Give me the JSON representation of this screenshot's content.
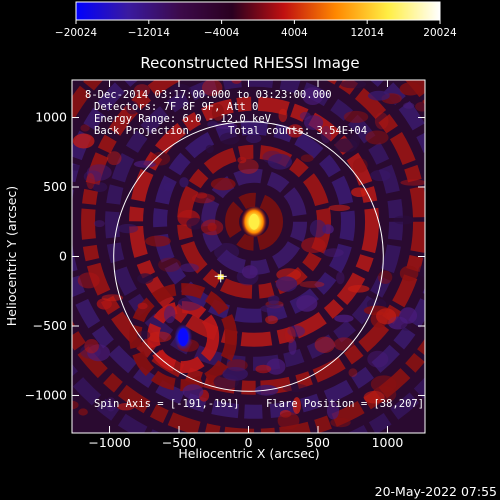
{
  "chart_data": {
    "type": "heatmap",
    "title": "Reconstructed RHESSI Image",
    "xlabel": "Heliocentric X (arcsec)",
    "ylabel": "Heliocentric Y (arcsec)",
    "xlim": [
      -1270,
      1270
    ],
    "ylim": [
      -1270,
      1270
    ],
    "xticks": [
      -1000,
      -500,
      0,
      500,
      1000
    ],
    "yticks": [
      -1000,
      -500,
      0,
      500,
      1000
    ],
    "xtick_labels": [
      "−1000",
      "−500",
      "0",
      "500",
      "1000"
    ],
    "ytick_labels": [
      "−1000",
      "−500",
      "0",
      "500",
      "1000"
    ],
    "colorbar": {
      "min": -20024,
      "max": 20024,
      "ticks": [
        -20024,
        -12014,
        -4004,
        4004,
        12014,
        20024
      ],
      "tick_labels": [
        "−20024",
        "−12014",
        "−4004",
        "4004",
        "12014",
        "20024"
      ],
      "colors": [
        "#0000ff",
        "#3a1aa0",
        "#3c0a4a",
        "#2a0020",
        "#c01010",
        "#ff8800",
        "#ffee44",
        "#ffffff"
      ]
    },
    "solar_disk": {
      "center": [
        0,
        0
      ],
      "radius": 970
    },
    "sources": [
      {
        "label": "bright source",
        "x": 40,
        "y": 250,
        "value": 20024
      },
      {
        "label": "negative source",
        "x": -470,
        "y": -580,
        "value": -20024
      }
    ],
    "flare_marker": {
      "x": -200,
      "y": -150
    },
    "annotations": {
      "time_range": "8-Dec-2014 03:17:00.000 to 03:23:00.000",
      "detectors": "Detectors: 7F 8F 9F, Att 0",
      "energy_range": "Energy Range: 6.0 - 12.0 keV",
      "method": "Back Projection",
      "total_counts": "Total counts: 3.54E+04",
      "spin_axis": "Spin Axis = [-191,-191]",
      "flare_position": "Flare Position = [38,207]"
    },
    "timestamp": "20-May-2022 07:55"
  }
}
